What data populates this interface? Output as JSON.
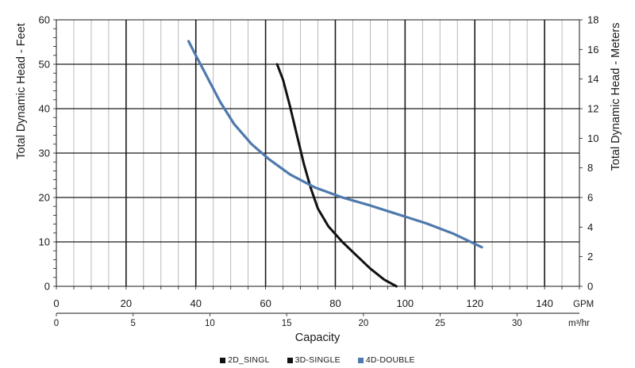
{
  "chart_data": {
    "type": "line",
    "xlabel": "Capacity",
    "ylabel_left": "Total Dynamic Head - Feet",
    "ylabel_right": "Total Dynamic Head - Meters",
    "x_unit_primary": "GPM",
    "x_unit_secondary": "m³/hr",
    "x_primary_ticks": [
      "0",
      "20",
      "40",
      "60",
      "80",
      "100",
      "120",
      "140"
    ],
    "x_secondary_ticks": [
      "0",
      "5",
      "10",
      "15",
      "20",
      "25",
      "30"
    ],
    "y_left_ticks": [
      "0",
      "10",
      "20",
      "30",
      "40",
      "50",
      "60"
    ],
    "y_right_ticks": [
      "0",
      "2",
      "4",
      "6",
      "8",
      "10",
      "12",
      "14",
      "16",
      "18"
    ],
    "xlim": [
      0,
      150
    ],
    "ylim": [
      0,
      60
    ],
    "y_right_lim": [
      0,
      18
    ],
    "x_secondary_lim": [
      0,
      34.07
    ],
    "grid": true,
    "legend_position": "bottom",
    "series": [
      {
        "name": "2D_SINGL",
        "color": "#111111",
        "x": [],
        "y": []
      },
      {
        "name": "3D-SINGLE",
        "color": "#111111",
        "x": [
          63.3,
          65,
          67,
          69,
          71,
          73,
          75,
          78,
          82,
          86,
          90,
          94,
          97.5
        ],
        "y": [
          50,
          46.5,
          40.5,
          34,
          27.5,
          22,
          17.5,
          13.5,
          10,
          7,
          4,
          1.5,
          0
        ]
      },
      {
        "name": "4D-DOUBLE",
        "color": "#4f79ad",
        "x": [
          37.9,
          40,
          43,
          47,
          51,
          56,
          61,
          67,
          74,
          82,
          90,
          98,
          106,
          114,
          122
        ],
        "y": [
          55.2,
          52,
          47.5,
          41.5,
          36.5,
          32,
          28.6,
          25.2,
          22.3,
          20,
          18.2,
          16.2,
          14.2,
          11.8,
          8.8
        ]
      }
    ]
  }
}
